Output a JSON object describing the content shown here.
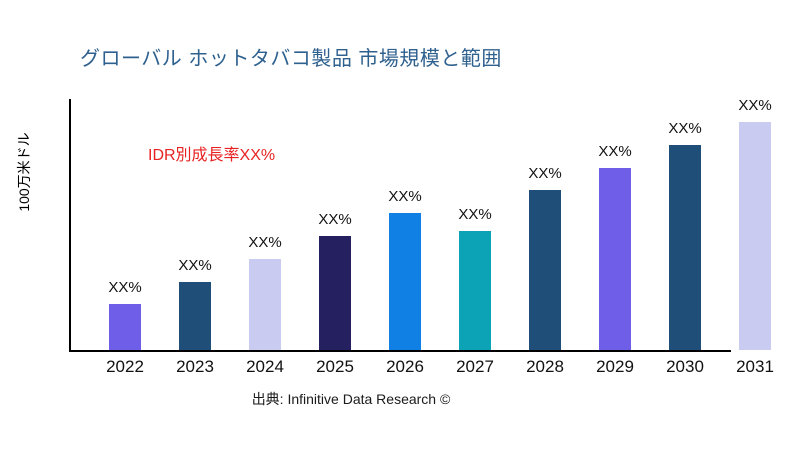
{
  "title": {
    "text": "グローバル ホットタバコ製品 市場規模と範囲",
    "color": "#2F618F"
  },
  "annotation": {
    "text": "IDR別成長率XX%",
    "color": "#E82222"
  },
  "source": {
    "text": "出典: Infinitive Data Research ©"
  },
  "chart_data": {
    "type": "bar",
    "title": "グローバル ホットタバコ製品 市場規模と範囲",
    "xlabel": "",
    "ylabel": "100万米ドル",
    "categories": [
      "2022",
      "2023",
      "2024",
      "2025",
      "2026",
      "2027",
      "2028",
      "2029",
      "2030",
      "2031"
    ],
    "values": [
      20,
      30,
      40,
      50,
      60,
      52,
      70,
      80,
      90,
      100
    ],
    "value_labels": [
      "XX%",
      "XX%",
      "XX%",
      "XX%",
      "XX%",
      "XX%",
      "XX%",
      "XX%",
      "XX%",
      "XX%"
    ],
    "bar_colors": [
      "#6E5EE8",
      "#1F4E79",
      "#C9CCF0",
      "#252160",
      "#1180E5",
      "#0BA3B5",
      "#1F4E79",
      "#6E5EE8",
      "#1F4E79",
      "#C9CCF0"
    ],
    "annotation": "IDR別成長率XX%",
    "ylim": [
      0,
      110
    ],
    "grid": false,
    "legend": "none",
    "axis_color": "#000000",
    "background_color": "#FFFFFF"
  }
}
